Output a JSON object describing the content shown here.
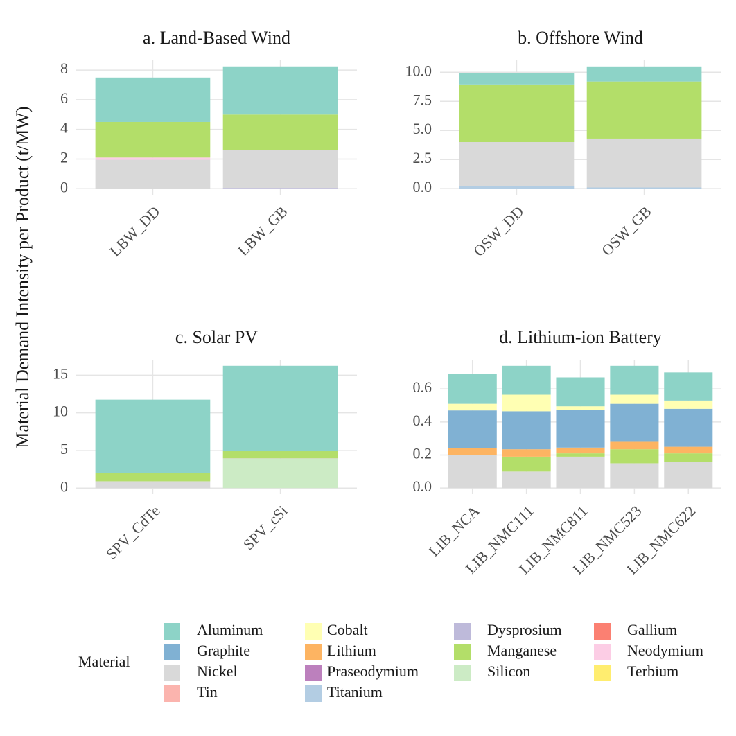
{
  "y_label": "Material Demand Intensity per Product (t/MW)",
  "legend": {
    "title": "Material",
    "items": [
      {
        "name": "Aluminum",
        "color": "#8DD3C7"
      },
      {
        "name": "Graphite",
        "color": "#80B1D3"
      },
      {
        "name": "Nickel",
        "color": "#D9D9D9"
      },
      {
        "name": "Tin",
        "color": "#FBB4AE"
      },
      {
        "name": "Cobalt",
        "color": "#FFFFB3"
      },
      {
        "name": "Lithium",
        "color": "#FDB462"
      },
      {
        "name": "Praseodymium",
        "color": "#BC80BD"
      },
      {
        "name": "Titanium",
        "color": "#B3CDE3"
      },
      {
        "name": "Dysprosium",
        "color": "#BEBADA"
      },
      {
        "name": "Manganese",
        "color": "#B3DE69"
      },
      {
        "name": "Silicon",
        "color": "#CCEBC5"
      },
      {
        "name": "Gallium",
        "color": "#FB8072"
      },
      {
        "name": "Neodymium",
        "color": "#FCCDE5"
      },
      {
        "name": "Terbium",
        "color": "#FFED6F"
      }
    ]
  },
  "chart_data": [
    {
      "type": "bar",
      "stacked": true,
      "title": "a. Land-Based Wind",
      "categories": [
        "LBW_DD",
        "LBW_GB"
      ],
      "series": [
        {
          "name": "Dysprosium",
          "color": "#BEBADA",
          "values": [
            0,
            0.05
          ]
        },
        {
          "name": "Nickel",
          "color": "#D9D9D9",
          "values": [
            1.95,
            2.55
          ]
        },
        {
          "name": "Neodymium",
          "color": "#FCCDE5",
          "values": [
            0.15,
            0
          ]
        },
        {
          "name": "Manganese",
          "color": "#B3DE69",
          "values": [
            2.4,
            2.4
          ]
        },
        {
          "name": "Aluminum",
          "color": "#8DD3C7",
          "values": [
            3.0,
            3.25
          ]
        }
      ],
      "ylim": [
        -0.41,
        8.66
      ],
      "yticks": [
        0,
        2,
        4,
        6,
        8
      ],
      "grid": true
    },
    {
      "type": "bar",
      "stacked": true,
      "title": "b. Offshore Wind",
      "categories": [
        "OSW_DD",
        "OSW_GB"
      ],
      "series": [
        {
          "name": "Titanium",
          "color": "#B3CDE3",
          "values": [
            0.2,
            0.1
          ]
        },
        {
          "name": "Nickel",
          "color": "#D9D9D9",
          "values": [
            3.8,
            4.2
          ]
        },
        {
          "name": "Manganese",
          "color": "#B3DE69",
          "values": [
            4.95,
            4.9
          ]
        },
        {
          "name": "Aluminum",
          "color": "#8DD3C7",
          "values": [
            1.0,
            1.3
          ]
        }
      ],
      "ylim": [
        -0.525,
        11.025
      ],
      "yticks": [
        {
          "value": 0,
          "label": "0.0"
        },
        2.5,
        {
          "value": 5,
          "label": "5.0"
        },
        7.5,
        {
          "value": 10,
          "label": "10.0"
        }
      ],
      "grid": true
    },
    {
      "type": "bar",
      "stacked": true,
      "title": "c. Solar PV",
      "categories": [
        "SPV_CdTe",
        "SPV_cSi"
      ],
      "series": [
        {
          "name": "Silicon",
          "color": "#CCEBC5",
          "values": [
            0,
            3.8
          ]
        },
        {
          "name": "Nickel",
          "color": "#D9D9D9",
          "values": [
            0.9,
            0.15
          ]
        },
        {
          "name": "Manganese",
          "color": "#B3DE69",
          "values": [
            1.1,
            0.95
          ]
        },
        {
          "name": "Aluminum",
          "color": "#8DD3C7",
          "values": [
            9.75,
            11.35
          ]
        }
      ],
      "ylim": [
        -0.81,
        17.06
      ],
      "yticks": [
        0,
        5,
        10,
        15
      ],
      "grid": true
    },
    {
      "type": "bar",
      "stacked": true,
      "title": "d. Lithium-ion Battery",
      "categories": [
        "LIB_NCA",
        "LIB_NMC111",
        "LIB_NMC811",
        "LIB_NMC523",
        "LIB_NMC622"
      ],
      "series": [
        {
          "name": "Nickel",
          "color": "#D9D9D9",
          "values": [
            0.2,
            0.1,
            0.19,
            0.15,
            0.16
          ]
        },
        {
          "name": "Manganese",
          "color": "#B3DE69",
          "values": [
            0,
            0.09,
            0.02,
            0.085,
            0.05
          ]
        },
        {
          "name": "Lithium",
          "color": "#FDB462",
          "values": [
            0.04,
            0.045,
            0.035,
            0.045,
            0.04
          ]
        },
        {
          "name": "Graphite",
          "color": "#80B1D3",
          "values": [
            0.23,
            0.23,
            0.23,
            0.23,
            0.23
          ]
        },
        {
          "name": "Cobalt",
          "color": "#FFFFB3",
          "values": [
            0.04,
            0.1,
            0.02,
            0.055,
            0.05
          ]
        },
        {
          "name": "Aluminum",
          "color": "#8DD3C7",
          "values": [
            0.18,
            0.175,
            0.175,
            0.175,
            0.17
          ]
        }
      ],
      "ylim": [
        -0.037,
        0.777
      ],
      "yticks": [
        {
          "value": 0,
          "label": "0.0"
        },
        0.2,
        0.4,
        0.6
      ],
      "grid": true
    }
  ]
}
